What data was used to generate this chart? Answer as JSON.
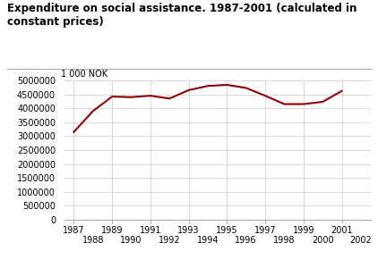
{
  "title_line1": "Expenditure on social assistance. 1987-2001 (calculated in",
  "title_line2": "constant prices)",
  "ylabel": "1 000 NOK",
  "years": [
    1987,
    1988,
    1989,
    1990,
    1991,
    1992,
    1993,
    1994,
    1995,
    1996,
    1997,
    1998,
    1999,
    2000,
    2001
  ],
  "values": [
    3150000,
    3900000,
    4420000,
    4400000,
    4450000,
    4350000,
    4650000,
    4800000,
    4840000,
    4730000,
    4450000,
    4150000,
    4150000,
    4230000,
    4620000
  ],
  "line_color": "#8b0000",
  "line_width": 1.5,
  "ylim": [
    0,
    5000000
  ],
  "yticks": [
    0,
    500000,
    1000000,
    1500000,
    2000000,
    2500000,
    3000000,
    3500000,
    4000000,
    4500000,
    5000000
  ],
  "ytick_labels": [
    "0",
    "500000",
    "1000000",
    "1500000",
    "2000000",
    "2500000",
    "3000000",
    "3500000",
    "4000000",
    "4500000",
    "5000000"
  ],
  "xticks_top": [
    1987,
    1989,
    1991,
    1993,
    1995,
    1997,
    1999,
    2001
  ],
  "xticks_bottom": [
    1988,
    1990,
    1992,
    1994,
    1996,
    1998,
    2000,
    2002
  ],
  "bg_color": "#ffffff",
  "grid_color": "#cccccc",
  "title_fontsize": 8.5,
  "axis_fontsize": 7.0,
  "xlim": [
    1986.5,
    2002.5
  ]
}
